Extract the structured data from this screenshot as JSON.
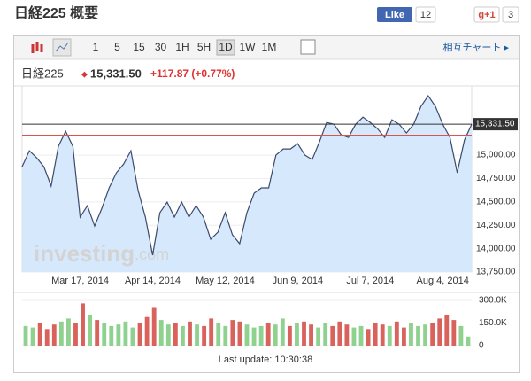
{
  "header": {
    "title": "日経225 概要",
    "like": "Like",
    "like_count": "12",
    "gplus": "g+1",
    "gplus_count": "3"
  },
  "toolbar": {
    "intervals": [
      "1",
      "5",
      "15",
      "30",
      "1H",
      "5H",
      "1D",
      "1W",
      "1M"
    ],
    "active": "1D",
    "link": "相互チャート ▸"
  },
  "quote": {
    "name": "日経225",
    "price": "15,331.50",
    "change": "+117.87 (+0.77%)"
  },
  "watermark": {
    "brand": "investing",
    "suffix": ".com"
  },
  "footer": "Last update: 10:30:38",
  "chart_data": [
    {
      "type": "area",
      "color": "#3d4a6b",
      "fill": "#d6e8fb",
      "categories": [
        null,
        null,
        null,
        null,
        null,
        null,
        null,
        null,
        "Mar 17, 2014",
        null,
        null,
        null,
        null,
        null,
        null,
        null,
        null,
        null,
        "Apr 14, 2014",
        null,
        null,
        null,
        null,
        null,
        null,
        null,
        null,
        null,
        "May 12, 2014",
        null,
        null,
        null,
        null,
        null,
        null,
        null,
        null,
        null,
        "Jun 9, 2014",
        null,
        null,
        null,
        null,
        null,
        null,
        null,
        null,
        null,
        "Jul 7, 2014",
        null,
        null,
        null,
        null,
        null,
        null,
        null,
        null,
        null,
        "Aug 4, 2014",
        null,
        null,
        null,
        null
      ],
      "values": [
        14877,
        15047,
        14972,
        14877,
        14669,
        15095,
        15256,
        15095,
        14337,
        14460,
        14242,
        14432,
        14650,
        14811,
        14905,
        15047,
        14621,
        14337,
        13930,
        14384,
        14498,
        14337,
        14498,
        14337,
        14460,
        14337,
        14100,
        14176,
        14384,
        14148,
        14053,
        14384,
        14593,
        14650,
        14650,
        15000,
        15066,
        15066,
        15123,
        15000,
        14953,
        15142,
        15350,
        15331,
        15218,
        15189,
        15331,
        15407,
        15350,
        15284,
        15189,
        15379,
        15331,
        15237,
        15331,
        15521,
        15635,
        15521,
        15331,
        15189,
        14811,
        15161,
        15331.5
      ],
      "ylim": [
        13750,
        15740
      ],
      "yticks": [
        {
          "value": 13750,
          "label": "13,750.00"
        },
        {
          "value": 14000,
          "label": "14,000.00"
        },
        {
          "value": 14250,
          "label": "14,250.00"
        },
        {
          "value": 14500,
          "label": "14,500.00"
        },
        {
          "value": 14750,
          "label": "14,750.00"
        },
        {
          "value": 15000,
          "label": "15,000.00"
        }
      ],
      "hline": {
        "value": 15331.5,
        "label": "15,331.50",
        "color": "#333333"
      },
      "ref_line": {
        "value": 15213.63,
        "color": "#d9534f"
      },
      "grid": true
    },
    {
      "type": "bar",
      "values": [
        130000,
        120000,
        150000,
        110000,
        140000,
        160000,
        180000,
        150000,
        280000,
        200000,
        170000,
        150000,
        130000,
        140000,
        160000,
        120000,
        150000,
        190000,
        250000,
        170000,
        140000,
        150000,
        130000,
        160000,
        140000,
        130000,
        180000,
        150000,
        130000,
        170000,
        160000,
        140000,
        120000,
        130000,
        150000,
        140000,
        180000,
        130000,
        150000,
        160000,
        140000,
        120000,
        150000,
        130000,
        160000,
        140000,
        120000,
        130000,
        110000,
        150000,
        140000,
        130000,
        160000,
        120000,
        150000,
        130000,
        140000,
        150000,
        180000,
        200000,
        170000,
        130000,
        60000
      ],
      "colors": [
        "#8fd18f",
        "#8fd18f",
        "#d9625c",
        "#d9625c",
        "#d9625c",
        "#8fd18f",
        "#8fd18f",
        "#d9625c",
        "#d9625c",
        "#8fd18f",
        "#d9625c",
        "#8fd18f",
        "#8fd18f",
        "#8fd18f",
        "#8fd18f",
        "#8fd18f",
        "#d9625c",
        "#d9625c",
        "#d9625c",
        "#8fd18f",
        "#8fd18f",
        "#d9625c",
        "#8fd18f",
        "#d9625c",
        "#8fd18f",
        "#d9625c",
        "#d9625c",
        "#8fd18f",
        "#8fd18f",
        "#d9625c",
        "#d9625c",
        "#8fd18f",
        "#8fd18f",
        "#8fd18f",
        "#d9625c",
        "#8fd18f",
        "#8fd18f",
        "#d9625c",
        "#8fd18f",
        "#d9625c",
        "#d9625c",
        "#8fd18f",
        "#8fd18f",
        "#d9625c",
        "#d9625c",
        "#d9625c",
        "#8fd18f",
        "#8fd18f",
        "#d9625c",
        "#d9625c",
        "#d9625c",
        "#8fd18f",
        "#d9625c",
        "#d9625c",
        "#8fd18f",
        "#8fd18f",
        "#8fd18f",
        "#d9625c",
        "#d9625c",
        "#d9625c",
        "#d9625c",
        "#8fd18f",
        "#8fd18f"
      ],
      "ylim": [
        0,
        300000
      ],
      "yticks": [
        0,
        {
          "value": 150000,
          "label": "150.0K"
        },
        {
          "value": 300000,
          "label": "300.0K"
        }
      ]
    }
  ]
}
